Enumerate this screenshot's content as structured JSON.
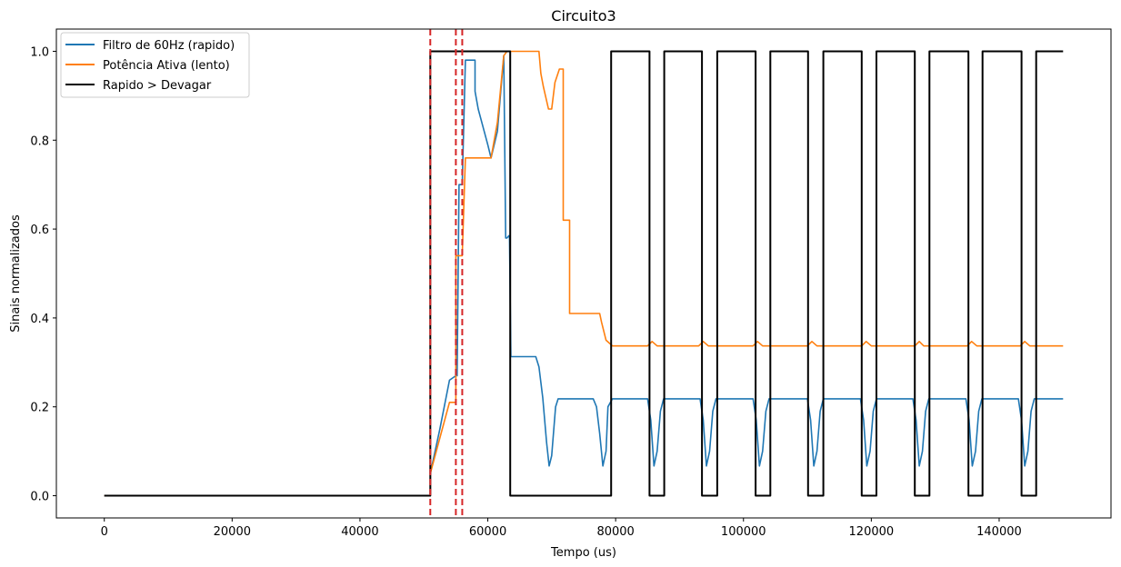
{
  "chart_data": {
    "type": "line",
    "title": "Circuito3",
    "xlabel": "Tempo (us)",
    "ylabel": "Sinais normalizados",
    "xlim": [
      -7500,
      157500
    ],
    "ylim": [
      -0.05,
      1.05
    ],
    "x_ticks": [
      0,
      20000,
      40000,
      60000,
      80000,
      100000,
      120000,
      140000
    ],
    "y_ticks": [
      0.0,
      0.2,
      0.4,
      0.6,
      0.8,
      1.0
    ],
    "x_tick_labels": [
      "0",
      "20000",
      "40000",
      "60000",
      "80000",
      "100000",
      "120000",
      "140000"
    ],
    "y_tick_labels": [
      "0.0",
      "0.2",
      "0.4",
      "0.6",
      "0.8",
      "1.0"
    ],
    "grid": false,
    "legend_position": "top-left",
    "colors": {
      "blue": "#1f77b4",
      "orange": "#ff7f0e",
      "black": "#000000",
      "red": "#d62728"
    },
    "vlines": [
      51000,
      55000,
      56000
    ],
    "series": [
      {
        "name": "Filtro de 60Hz (rapido)",
        "color": "#1f77b4",
        "x": [
          0,
          51000,
          51000,
          52500,
          54000,
          55000,
          55200,
          55500,
          56000,
          56500,
          58000,
          58000,
          58500,
          60000,
          60500,
          61500,
          62500,
          62800,
          63000,
          63300,
          63400,
          63600,
          67500,
          68000,
          68600,
          69200,
          69600,
          70000,
          70600,
          71000,
          71800,
          76500,
          77000,
          77500,
          78000,
          78500,
          78800,
          79500,
          85000,
          85500,
          86000,
          86500,
          87000,
          87500,
          93200,
          93700,
          94200,
          94700,
          95200,
          95700,
          101500,
          102000,
          102500,
          103000,
          103500,
          104000,
          110000,
          110500,
          111000,
          111500,
          112000,
          112500,
          118300,
          118800,
          119300,
          119800,
          120300,
          120800,
          126500,
          127000,
          127500,
          128000,
          128500,
          129000,
          134800,
          135300,
          135800,
          136300,
          136800,
          137300,
          143000,
          143500,
          144000,
          144500,
          145000,
          145500,
          150000
        ],
        "y": [
          0,
          0,
          0.05,
          0.15,
          0.26,
          0.27,
          0.27,
          0.7,
          0.7,
          0.98,
          0.98,
          0.91,
          0.87,
          0.79,
          0.76,
          0.82,
          0.99,
          0.58,
          0.58,
          0.585,
          0.58,
          0.313,
          0.313,
          0.29,
          0.22,
          0.12,
          0.067,
          0.09,
          0.2,
          0.218,
          0.218,
          0.218,
          0.2,
          0.14,
          0.067,
          0.1,
          0.2,
          0.218,
          0.218,
          0.17,
          0.067,
          0.1,
          0.19,
          0.218,
          0.218,
          0.17,
          0.067,
          0.1,
          0.19,
          0.218,
          0.218,
          0.17,
          0.067,
          0.1,
          0.19,
          0.218,
          0.218,
          0.17,
          0.067,
          0.1,
          0.19,
          0.218,
          0.218,
          0.17,
          0.067,
          0.1,
          0.19,
          0.218,
          0.218,
          0.17,
          0.067,
          0.1,
          0.19,
          0.218,
          0.218,
          0.17,
          0.067,
          0.1,
          0.19,
          0.218,
          0.218,
          0.17,
          0.067,
          0.1,
          0.19,
          0.218,
          0.218
        ]
      },
      {
        "name": "Potência Ativa (lento)",
        "color": "#ff7f0e",
        "x": [
          0,
          51000,
          51000,
          52500,
          54000,
          55000,
          55000,
          56000,
          56500,
          56700,
          60500,
          61500,
          62500,
          63000,
          68000,
          68300,
          68700,
          69500,
          70000,
          70500,
          71200,
          71800,
          71800,
          72800,
          72800,
          73500,
          73500,
          77500,
          77800,
          78500,
          79500,
          85000,
          85700,
          86500,
          87500,
          93000,
          93700,
          94500,
          95500,
          101500,
          102200,
          103000,
          104000,
          110000,
          110700,
          111500,
          112500,
          118500,
          119200,
          120000,
          121000,
          126800,
          127500,
          128200,
          129200,
          135000,
          135700,
          136500,
          137500,
          143300,
          144000,
          144800,
          145800,
          150000
        ],
        "y": [
          0,
          0,
          0.05,
          0.13,
          0.21,
          0.21,
          0.54,
          0.54,
          0.76,
          0.76,
          0.76,
          0.84,
          0.99,
          1.0,
          1.0,
          0.95,
          0.92,
          0.87,
          0.87,
          0.93,
          0.96,
          0.96,
          0.62,
          0.62,
          0.41,
          0.41,
          0.41,
          0.41,
          0.39,
          0.35,
          0.337,
          0.337,
          0.347,
          0.337,
          0.337,
          0.337,
          0.347,
          0.337,
          0.337,
          0.337,
          0.347,
          0.337,
          0.337,
          0.337,
          0.347,
          0.337,
          0.337,
          0.337,
          0.347,
          0.337,
          0.337,
          0.337,
          0.347,
          0.337,
          0.337,
          0.337,
          0.347,
          0.337,
          0.337,
          0.337,
          0.347,
          0.337,
          0.337,
          0.337
        ]
      },
      {
        "name": "Rapido > Devagar",
        "color": "#000000",
        "x": [
          0,
          51000,
          51000,
          63500,
          63500,
          79300,
          79300,
          85300,
          85300,
          87600,
          87600,
          93500,
          93500,
          95900,
          95900,
          101900,
          101900,
          104200,
          104200,
          110100,
          110100,
          112500,
          112500,
          118500,
          118500,
          120800,
          120800,
          126800,
          126800,
          129100,
          129100,
          135200,
          135200,
          137400,
          137400,
          143500,
          143500,
          145800,
          145800,
          150000
        ],
        "y": [
          0,
          0,
          1,
          1,
          0,
          0,
          1,
          1,
          0,
          0,
          1,
          1,
          0,
          0,
          1,
          1,
          0,
          0,
          1,
          1,
          0,
          0,
          1,
          1,
          0,
          0,
          1,
          1,
          0,
          0,
          1,
          1,
          0,
          0,
          1,
          1,
          0,
          0,
          1,
          1
        ]
      }
    ]
  }
}
